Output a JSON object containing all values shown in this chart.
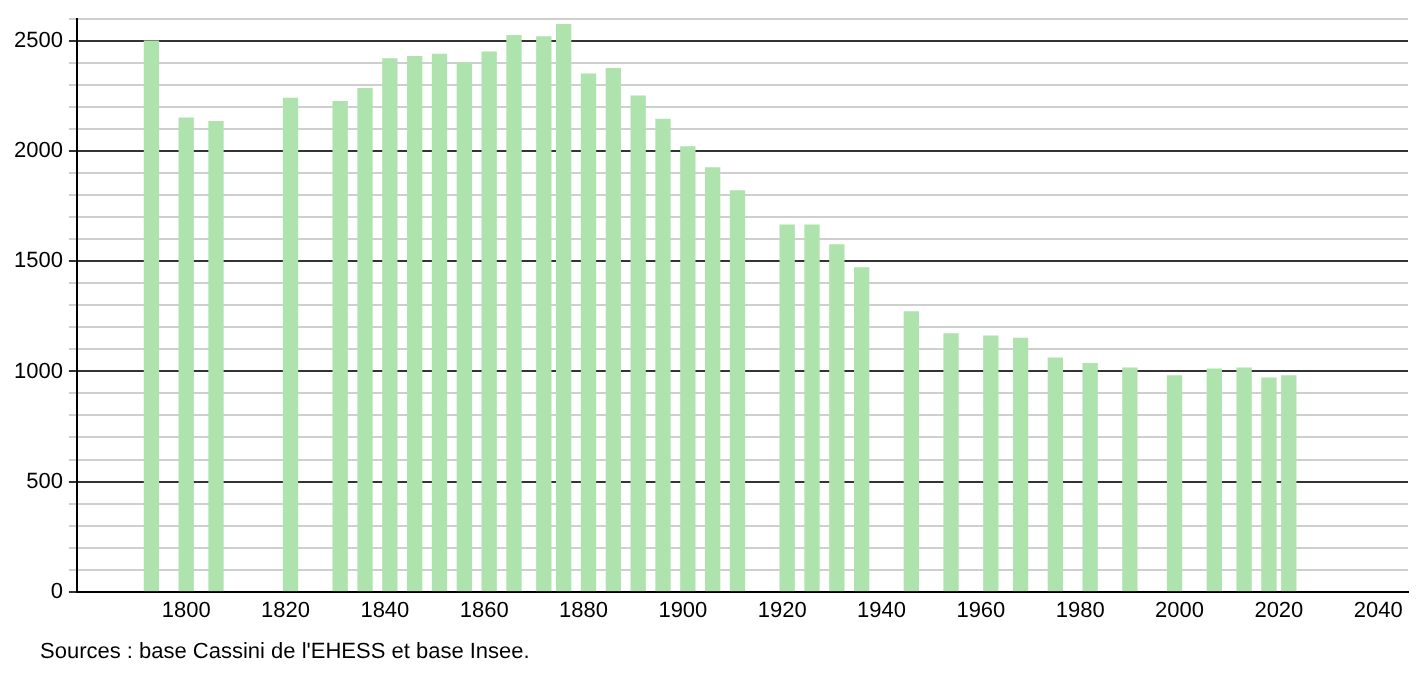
{
  "chart_data": {
    "type": "bar",
    "color": "#aee3ae",
    "x": [
      1793,
      1800,
      1806,
      1821,
      1831,
      1836,
      1841,
      1846,
      1851,
      1856,
      1861,
      1866,
      1872,
      1876,
      1881,
      1886,
      1891,
      1896,
      1901,
      1906,
      1911,
      1921,
      1926,
      1931,
      1936,
      1946,
      1954,
      1962,
      1968,
      1975,
      1982,
      1990,
      1999,
      2007,
      2013,
      2018,
      2022
    ],
    "values": [
      2500,
      2150,
      2135,
      2240,
      2225,
      2285,
      2420,
      2430,
      2440,
      2400,
      2450,
      2525,
      2520,
      2575,
      2350,
      2375,
      2250,
      2145,
      2020,
      1925,
      1820,
      1665,
      1665,
      1575,
      1470,
      1270,
      1170,
      1160,
      1150,
      1060,
      1035,
      1015,
      980,
      1010,
      1015,
      970,
      980
    ],
    "xlim": [
      1778,
      2046
    ],
    "xticks": [
      1800,
      1820,
      1840,
      1860,
      1880,
      1900,
      1920,
      1940,
      1960,
      1980,
      2000,
      2020,
      2040
    ],
    "ylim": [
      0,
      2600
    ],
    "yticks": [
      0,
      {
        "value": 100,
        "label": null
      },
      {
        "value": 200,
        "label": null
      },
      {
        "value": 300,
        "label": null
      },
      {
        "value": 400,
        "label": null
      },
      500,
      {
        "value": 600,
        "label": null
      },
      {
        "value": 700,
        "label": null
      },
      {
        "value": 800,
        "label": null
      },
      {
        "value": 900,
        "label": null
      },
      1000,
      {
        "value": 1100,
        "label": null
      },
      {
        "value": 1200,
        "label": null
      },
      {
        "value": 1300,
        "label": null
      },
      {
        "value": 1400,
        "label": null
      },
      1500,
      {
        "value": 1600,
        "label": null
      },
      {
        "value": 1700,
        "label": null
      },
      {
        "value": 1800,
        "label": null
      },
      {
        "value": 1900,
        "label": null
      },
      2000,
      {
        "value": 2100,
        "label": null
      },
      {
        "value": 2200,
        "label": null
      },
      {
        "value": 2300,
        "label": null
      },
      {
        "value": 2400,
        "label": null
      },
      2500,
      {
        "value": 2600,
        "label": null
      }
    ],
    "grid": "y",
    "legend": false,
    "annotations": [
      "Sources : base Cassini de l'EHESS et base Insee."
    ]
  }
}
